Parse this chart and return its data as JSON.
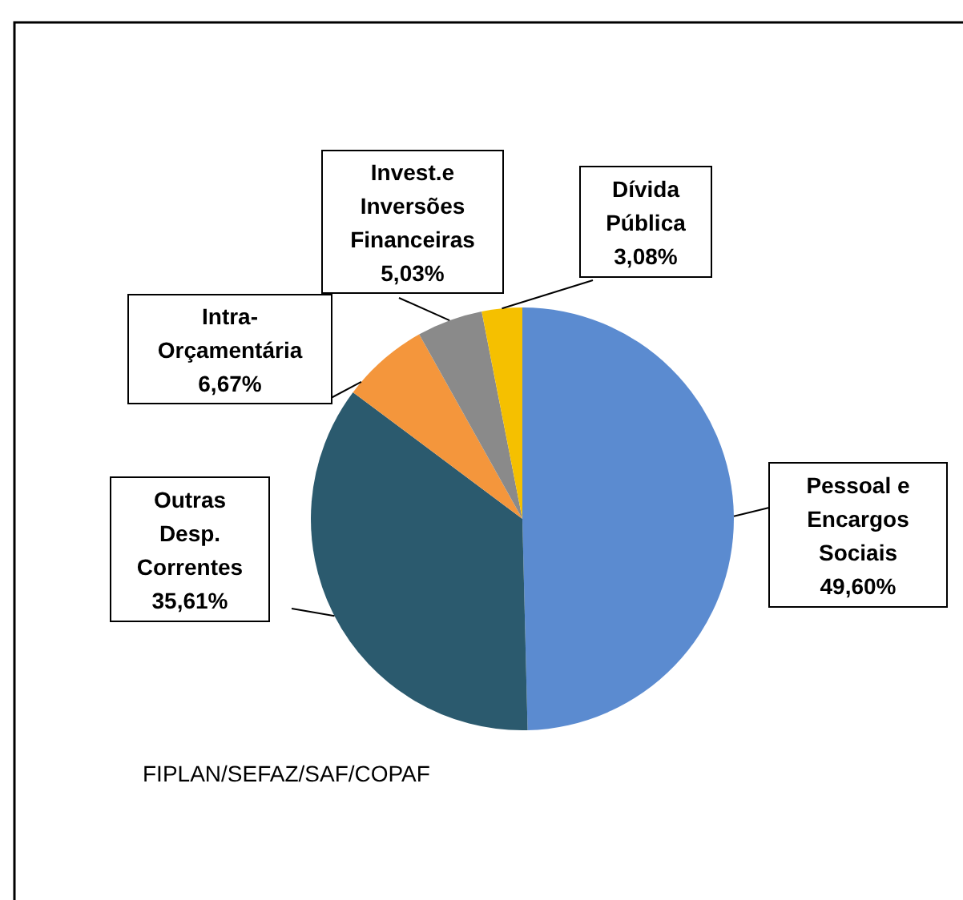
{
  "chart_data": {
    "type": "pie",
    "categories": [
      "Pessoal e Encargos Sociais",
      "Outras Desp. Correntes",
      "Intra-Orçamentária",
      "Invest.e Inversões Financeiras",
      "Dívida Pública"
    ],
    "values": [
      49.6,
      35.61,
      6.67,
      5.03,
      3.08
    ],
    "colors": [
      "#5b8bd0",
      "#2b5a6e",
      "#f4963c",
      "#8a8a8a",
      "#f5c000"
    ],
    "value_labels": [
      "49,60%",
      "35,61%",
      "6,67%",
      "5,03%",
      "3,08%"
    ],
    "annotations": [
      "FIPLAN/SEFAZ/SAF/COPAF"
    ]
  }
}
